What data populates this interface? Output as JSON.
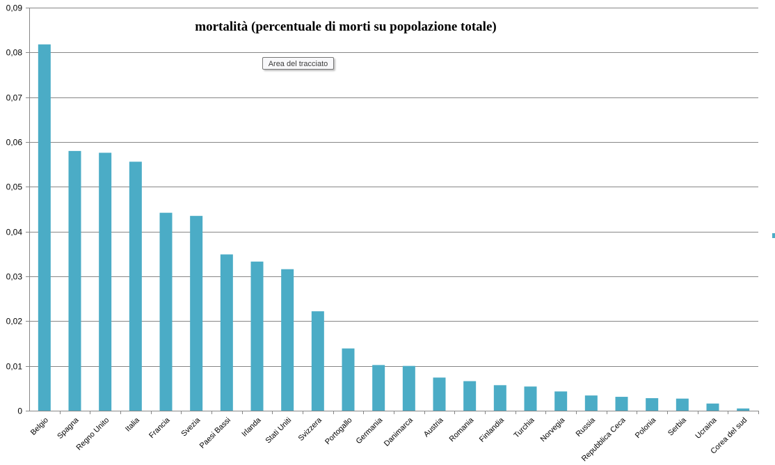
{
  "chart_data": {
    "type": "bar",
    "title": "mortalità  (percentuale di morti su popolazione totale)",
    "xlabel": "",
    "ylabel": "",
    "ylim": [
      0,
      0.09
    ],
    "yticks": [
      "0",
      "0,01",
      "0,02",
      "0,03",
      "0,04",
      "0,05",
      "0,06",
      "0,07",
      "0,08",
      "0,09"
    ],
    "grid": true,
    "bar_color": "#4bacc6",
    "categories": [
      "Belgio",
      "Spagna",
      "Regno Unito",
      "Italia",
      "Francia",
      "Svezia",
      "Paesi Bassi",
      "Irlanda",
      "Stati Uniti",
      "Svizzera",
      "Portogallo",
      "Germania",
      "Danimarca",
      "Austria",
      "Romania",
      "Finlandia",
      "Turchia",
      "Norvegia",
      "Russia",
      "Repubblica Ceca",
      "Polonia",
      "Serbia",
      "Ucraina",
      "Corea del sud"
    ],
    "values": [
      0.0818,
      0.058,
      0.0576,
      0.0556,
      0.0442,
      0.0435,
      0.0349,
      0.0333,
      0.0316,
      0.0222,
      0.0139,
      0.0102,
      0.01,
      0.0074,
      0.0066,
      0.0057,
      0.0054,
      0.0043,
      0.0034,
      0.0031,
      0.0028,
      0.0027,
      0.0016,
      0.0005
    ]
  },
  "tooltip": {
    "label": "Area del tracciato"
  }
}
